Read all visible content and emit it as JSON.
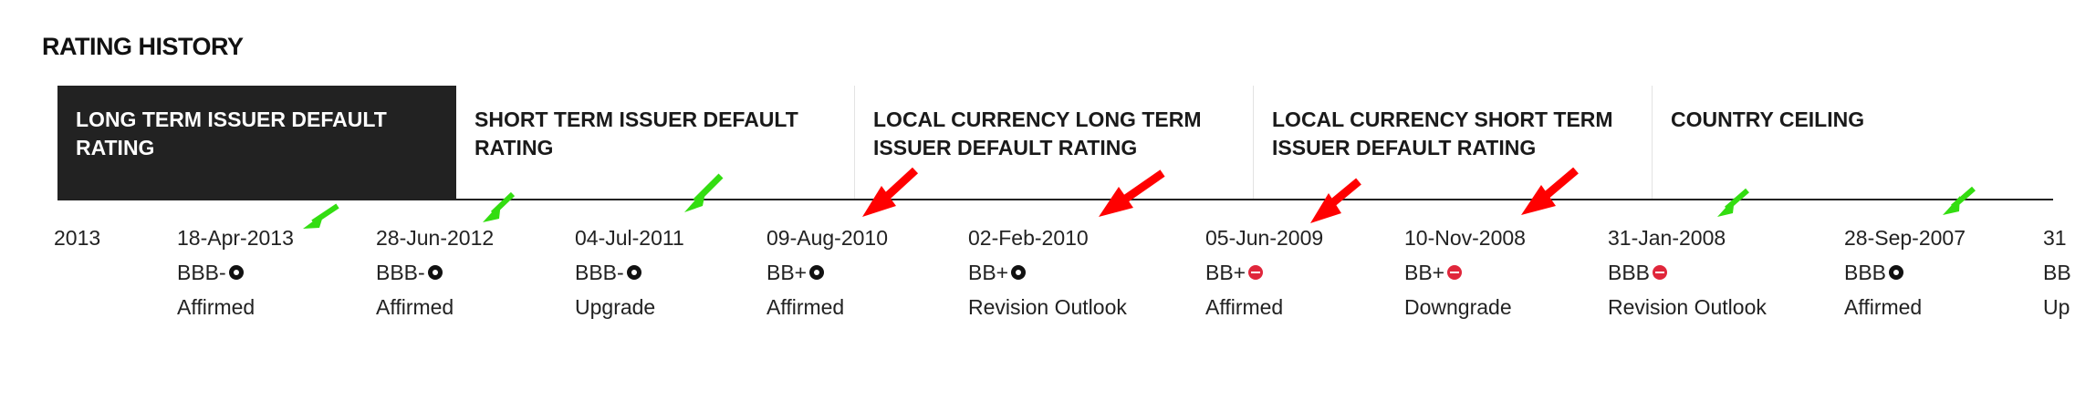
{
  "section_title": "RATING HISTORY",
  "tabs": [
    {
      "label_line1": "LONG TERM ISSUER DEFAULT",
      "label_line2": "RATING",
      "active": true
    },
    {
      "label_line1": "SHORT TERM ISSUER DEFAULT",
      "label_line2": "RATING",
      "active": false
    },
    {
      "label_line1": "LOCAL CURRENCY LONG TERM",
      "label_line2": "ISSUER DEFAULT RATING",
      "active": false
    },
    {
      "label_line1": "LOCAL CURRENCY SHORT TERM",
      "label_line2": "ISSUER DEFAULT RATING",
      "active": false
    },
    {
      "label_line1": "COUNTRY CEILING",
      "label_line2": "",
      "active": false
    }
  ],
  "timeline": [
    {
      "date": "2013",
      "rating": "",
      "watch": "",
      "action": ""
    },
    {
      "date": "18-Apr-2013",
      "rating": "BBB-",
      "watch": "stable",
      "action": "Affirmed"
    },
    {
      "date": "28-Jun-2012",
      "rating": "BBB-",
      "watch": "stable",
      "action": "Affirmed"
    },
    {
      "date": "04-Jul-2011",
      "rating": "BBB-",
      "watch": "stable",
      "action": "Upgrade"
    },
    {
      "date": "09-Aug-2010",
      "rating": "BB+",
      "watch": "stable",
      "action": "Affirmed"
    },
    {
      "date": "02-Feb-2010",
      "rating": "BB+",
      "watch": "stable",
      "action": "Revision Outlook"
    },
    {
      "date": "05-Jun-2009",
      "rating": "BB+",
      "watch": "negative",
      "action": "Affirmed"
    },
    {
      "date": "10-Nov-2008",
      "rating": "BB+",
      "watch": "negative",
      "action": "Downgrade"
    },
    {
      "date": "31-Jan-2008",
      "rating": "BBB",
      "watch": "negative",
      "action": "Revision Outlook"
    },
    {
      "date": "28-Sep-2007",
      "rating": "BBB",
      "watch": "stable",
      "action": "Affirmed"
    },
    {
      "date": "31",
      "rating": "BB",
      "watch": "",
      "action": "Up"
    }
  ],
  "colors": {
    "active_tab_bg": "#222222",
    "negative_watch": "#e0263b",
    "arrow_green": "#33dd11",
    "arrow_red": "#ff0000"
  }
}
